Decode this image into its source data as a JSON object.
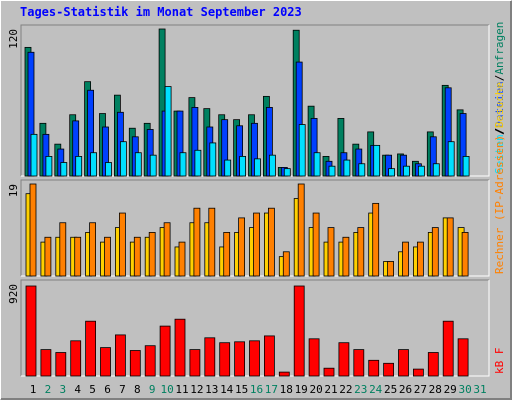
{
  "chart_data": [
    {
      "type": "bar",
      "title": "Tages-Statistik im Monat September 2023",
      "ylim": [
        0,
        120
      ],
      "yticks": [
        120
      ],
      "legend_separator": "/",
      "series": [
        {
          "name": "Anfragen",
          "color": "#008060",
          "values": [
            105,
            43,
            26,
            50,
            77,
            51,
            66,
            39,
            43,
            120,
            53,
            64,
            55,
            50,
            46,
            50,
            65,
            7,
            119,
            57,
            16,
            47,
            26,
            36,
            17,
            18,
            12,
            36,
            74,
            54,
            0
          ]
        },
        {
          "name": "Dateien",
          "color": "#0040ff",
          "values": [
            101,
            34,
            22,
            45,
            70,
            40,
            52,
            32,
            38,
            53,
            53,
            56,
            40,
            46,
            41,
            43,
            56,
            7,
            93,
            47,
            12,
            19,
            22,
            25,
            17,
            17,
            10,
            32,
            72,
            51,
            0
          ]
        },
        {
          "name": "Seiten",
          "color": "#00e0ff",
          "values": [
            34,
            16,
            11,
            16,
            19,
            11,
            28,
            19,
            17,
            73,
            19,
            21,
            27,
            13,
            16,
            14,
            17,
            6,
            42,
            19,
            8,
            13,
            10,
            25,
            6,
            8,
            8,
            10,
            28,
            16,
            0
          ]
        }
      ]
    },
    {
      "type": "bar",
      "ylim": [
        0,
        19
      ],
      "yticks": [
        19
      ],
      "legend_separator": "/",
      "series": [
        {
          "name": "Besuche",
          "color": "#ffd000",
          "values": [
            17,
            7,
            8,
            8,
            9,
            7,
            10,
            7,
            8,
            10,
            6,
            11,
            11,
            6,
            9,
            10,
            13,
            4,
            16,
            10,
            7,
            7,
            9,
            13,
            3,
            5,
            6,
            9,
            12,
            10,
            0
          ]
        },
        {
          "name": "Rechner (IP-Adressen)",
          "color": "#ff8000",
          "values": [
            19,
            8,
            11,
            8,
            11,
            8,
            13,
            8,
            9,
            11,
            7,
            14,
            14,
            9,
            12,
            13,
            14,
            5,
            19,
            13,
            10,
            8,
            10,
            15,
            3,
            7,
            7,
            10,
            12,
            9,
            0
          ]
        }
      ]
    },
    {
      "type": "bar",
      "ylim": [
        0,
        920
      ],
      "yticks": [
        920
      ],
      "legend_separator": "/",
      "series": [
        {
          "name": "kB F",
          "color": "#ff0000",
          "values": [
            900,
            264,
            235,
            352,
            548,
            284,
            411,
            255,
            303,
            499,
            568,
            264,
            382,
            333,
            342,
            352,
            401,
            39,
            900,
            372,
            78,
            333,
            264,
            157,
            127,
            264,
            69,
            235,
            548,
            372,
            0
          ]
        }
      ],
      "categories": [
        "1",
        "2",
        "3",
        "4",
        "5",
        "6",
        "7",
        "8",
        "9",
        "10",
        "11",
        "12",
        "13",
        "14",
        "15",
        "16",
        "17",
        "18",
        "19",
        "20",
        "21",
        "22",
        "23",
        "24",
        "25",
        "26",
        "27",
        "28",
        "29",
        "30",
        "31"
      ],
      "category_colors": [
        "#000000",
        "#008060",
        "#008060",
        "#000000",
        "#000000",
        "#000000",
        "#000000",
        "#000000",
        "#008060",
        "#008060",
        "#000000",
        "#000000",
        "#000000",
        "#000000",
        "#000000",
        "#008060",
        "#008060",
        "#000000",
        "#000000",
        "#000000",
        "#000000",
        "#000000",
        "#008060",
        "#008060",
        "#000000",
        "#000000",
        "#000000",
        "#000000",
        "#000000",
        "#008060",
        "#008060"
      ]
    }
  ]
}
